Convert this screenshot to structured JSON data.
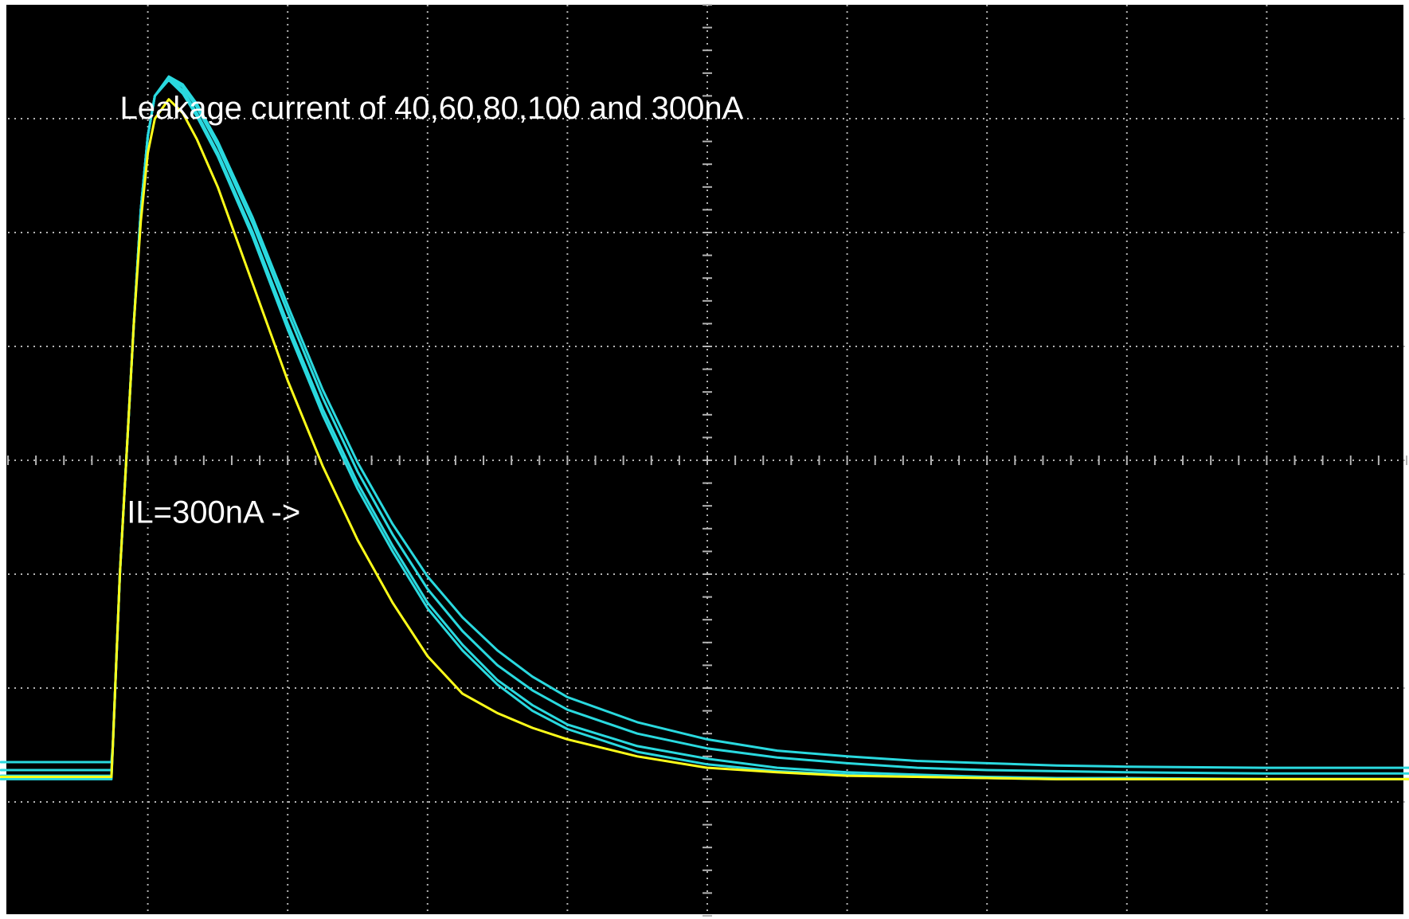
{
  "chart_data": {
    "type": "line",
    "title": "",
    "xlabel": "",
    "ylabel": "",
    "grid": true,
    "grid_divisions": {
      "x": 10,
      "y": 8
    },
    "xlim": [
      0,
      10
    ],
    "ylim": [
      -4,
      4
    ],
    "colors": {
      "background": "#000000",
      "grid": "#b4b4b4",
      "cyan": "#2ad9df",
      "yellow": "#ffff1a",
      "white": "#ffffff"
    },
    "annotations": [
      {
        "text": "Leakage current of 40,60,80,100 and 300nA",
        "x": 0.8,
        "y": 3.0
      },
      {
        "text": "IL=300nA ->",
        "x": 0.85,
        "y": -0.55
      }
    ],
    "series": [
      {
        "color": "cyan",
        "x": [
          -0.05,
          0.74,
          0.75,
          0.8,
          0.85,
          0.9,
          0.95,
          1.0,
          1.05,
          1.15,
          1.25,
          1.35,
          1.5,
          1.75,
          2.0,
          2.25,
          2.5,
          2.75,
          3.0,
          3.25,
          3.5,
          3.75,
          4.0,
          4.5,
          5.0,
          5.5,
          6.0,
          6.5,
          7.0,
          7.5,
          8.0,
          9.0,
          10.05
        ],
        "y": [
          -2.77,
          -2.77,
          -2.5,
          -1.0,
          0.1,
          1.2,
          2.2,
          2.85,
          3.2,
          3.35,
          3.25,
          3.05,
          2.7,
          2.0,
          1.2,
          0.45,
          -0.2,
          -0.75,
          -1.25,
          -1.62,
          -1.93,
          -2.15,
          -2.32,
          -2.51,
          -2.62,
          -2.7,
          -2.74,
          -2.76,
          -2.78,
          -2.79,
          -2.79,
          -2.8,
          -2.8
        ]
      },
      {
        "color": "cyan",
        "x": [
          -0.05,
          0.74,
          0.75,
          0.8,
          0.85,
          0.9,
          0.95,
          1.0,
          1.05,
          1.15,
          1.25,
          1.35,
          1.5,
          1.75,
          2.0,
          2.25,
          2.5,
          2.75,
          3.0,
          3.25,
          3.5,
          3.75,
          4.0,
          4.5,
          5.0,
          5.5,
          6.0,
          6.5,
          7.0,
          7.5,
          8.0,
          9.0,
          10.05
        ],
        "y": [
          -2.72,
          -2.72,
          -2.5,
          -1.0,
          0.1,
          1.2,
          2.2,
          2.85,
          3.2,
          3.36,
          3.28,
          3.1,
          2.76,
          2.08,
          1.3,
          0.55,
          -0.1,
          -0.65,
          -1.13,
          -1.5,
          -1.8,
          -2.02,
          -2.19,
          -2.4,
          -2.53,
          -2.61,
          -2.66,
          -2.7,
          -2.72,
          -2.73,
          -2.74,
          -2.75,
          -2.75
        ]
      },
      {
        "color": "cyan",
        "x": [
          -0.05,
          0.74,
          0.75,
          0.8,
          0.85,
          0.9,
          0.95,
          1.0,
          1.05,
          1.15,
          1.25,
          1.35,
          1.5,
          1.75,
          2.0,
          2.25,
          2.5,
          2.75,
          3.0,
          3.25,
          3.5,
          3.75,
          4.0,
          4.5,
          5.0,
          5.5,
          6.0,
          6.5,
          7.0,
          7.5,
          8.0,
          9.0,
          10.05
        ],
        "y": [
          -2.65,
          -2.65,
          -2.5,
          -1.0,
          0.1,
          1.2,
          2.2,
          2.85,
          3.2,
          3.37,
          3.3,
          3.13,
          2.8,
          2.13,
          1.36,
          0.62,
          -0.02,
          -0.56,
          -1.02,
          -1.38,
          -1.67,
          -1.9,
          -2.08,
          -2.3,
          -2.45,
          -2.55,
          -2.6,
          -2.64,
          -2.66,
          -2.68,
          -2.69,
          -2.7,
          -2.7
        ]
      },
      {
        "color": "cyan",
        "x": [
          -0.05,
          0.74,
          0.75,
          0.8,
          0.85,
          0.9,
          0.95,
          1.0,
          1.05,
          1.15,
          1.25,
          1.35,
          1.5,
          1.75,
          2.0,
          2.25,
          2.5,
          2.75,
          3.0,
          3.25,
          3.5,
          3.75,
          4.0,
          4.5,
          5.0,
          5.5,
          6.0,
          6.5,
          7.0,
          7.5,
          8.0,
          9.0,
          10.05
        ],
        "y": [
          -2.8,
          -2.8,
          -2.5,
          -1.0,
          0.1,
          1.2,
          2.2,
          2.85,
          3.2,
          3.34,
          3.22,
          3.02,
          2.67,
          1.96,
          1.15,
          0.4,
          -0.25,
          -0.8,
          -1.3,
          -1.67,
          -1.97,
          -2.2,
          -2.36,
          -2.56,
          -2.67,
          -2.73,
          -2.76,
          -2.78,
          -2.79,
          -2.8,
          -2.8,
          -2.8,
          -2.8
        ]
      },
      {
        "color": "yellow",
        "x": [
          -0.05,
          0.74,
          0.75,
          0.8,
          0.85,
          0.9,
          0.95,
          1.0,
          1.05,
          1.15,
          1.25,
          1.35,
          1.5,
          1.75,
          2.0,
          2.25,
          2.5,
          2.75,
          3.0,
          3.25,
          3.5,
          3.75,
          4.0,
          4.5,
          5.0,
          5.5,
          6.0,
          6.5,
          7.0,
          7.5,
          8.0,
          9.0,
          10.05
        ],
        "y": [
          -2.78,
          -2.78,
          -2.5,
          -1.0,
          0.1,
          1.2,
          2.1,
          2.7,
          3.0,
          3.17,
          3.05,
          2.82,
          2.4,
          1.55,
          0.7,
          -0.05,
          -0.7,
          -1.25,
          -1.72,
          -2.05,
          -2.22,
          -2.35,
          -2.45,
          -2.6,
          -2.7,
          -2.74,
          -2.77,
          -2.78,
          -2.79,
          -2.8,
          -2.8,
          -2.8,
          -2.8
        ]
      }
    ]
  }
}
